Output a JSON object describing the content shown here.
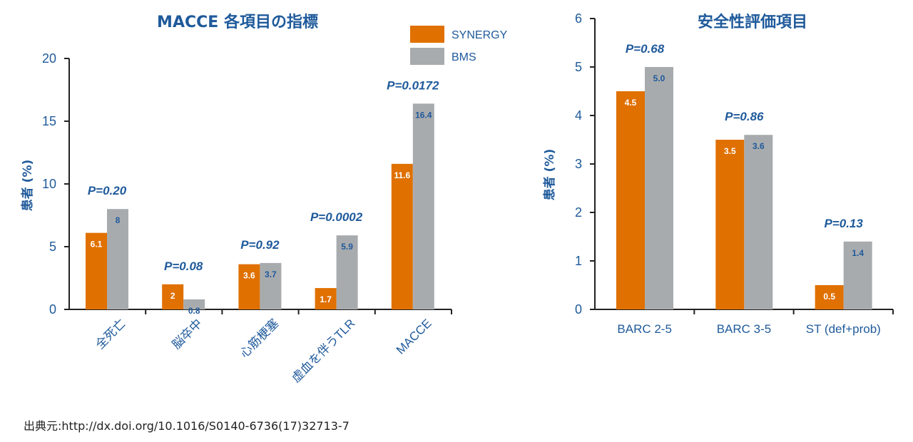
{
  "source": {
    "prefix": "出典元:",
    "text": "http://dx.doi.org/10.1016/S0140-6736(17)32713-7"
  },
  "legend": [
    {
      "name": "SYNERGY",
      "color": "#e07000"
    },
    {
      "name": "BMS",
      "color": "#a8abae"
    }
  ],
  "colors": {
    "title": "#1f5a9b",
    "axis": "#222222",
    "label_on_orange": "#ffffff",
    "label_on_gray": "#1f5a9b"
  },
  "chart_data": [
    {
      "type": "bar",
      "title": "MACCE 各項目の指標",
      "ylabel": "患者 (%)",
      "ylim": [
        0,
        20
      ],
      "yticks": [
        0,
        5,
        10,
        15,
        20
      ],
      "categories": [
        "全死亡",
        "脳卒中",
        "心筋梗塞",
        "虚血を伴うTLR",
        "MACCE"
      ],
      "series": [
        {
          "name": "SYNERGY",
          "values": [
            6.1,
            2,
            3.6,
            1.7,
            11.6
          ],
          "labels": [
            "6.1",
            "2",
            "3.6",
            "1.7",
            "11.6"
          ]
        },
        {
          "name": "BMS",
          "values": [
            8,
            0.8,
            3.7,
            5.9,
            16.4
          ],
          "labels": [
            "8",
            "0.8",
            "3.7",
            "5.9",
            "16.4"
          ]
        }
      ],
      "p_values": [
        "P=0.20",
        "P=0.08",
        "P=0.92",
        "P=0.0002",
        "P=0.0172"
      ],
      "legend_position": "top-right",
      "grid": false
    },
    {
      "type": "bar",
      "title": "安全性評価項目",
      "ylabel": "患者 (%)",
      "ylim": [
        0,
        6
      ],
      "yticks": [
        0,
        1,
        2,
        3,
        4,
        5,
        6
      ],
      "categories": [
        "BARC 2-5",
        "BARC 3-5",
        "ST (def+prob)"
      ],
      "series": [
        {
          "name": "SYNERGY",
          "values": [
            4.5,
            3.5,
            0.5
          ],
          "labels": [
            "4.5",
            "3.5",
            "0.5"
          ]
        },
        {
          "name": "BMS",
          "values": [
            5.0,
            3.6,
            1.4
          ],
          "labels": [
            "5.0",
            "3.6",
            "1.4"
          ]
        }
      ],
      "p_values": [
        "P=0.68",
        "P=0.86",
        "P=0.13"
      ],
      "grid": false
    }
  ]
}
